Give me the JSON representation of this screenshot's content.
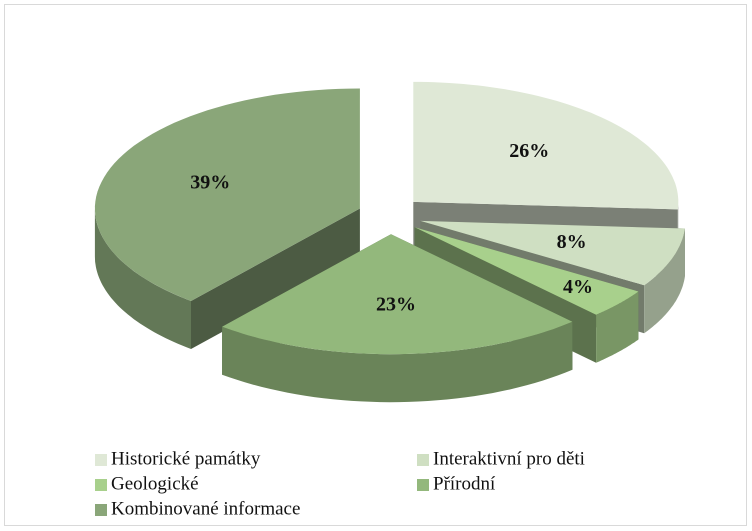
{
  "chart_data": {
    "type": "pie",
    "categories": [
      "Historické památky",
      "Interaktivní pro děti",
      "Geologické",
      "Přírodní",
      "Kombinované informace"
    ],
    "values": [
      26,
      8,
      4,
      23,
      39
    ],
    "value_labels": [
      "26%",
      "8%",
      "4%",
      "23%",
      "39%"
    ],
    "colors": [
      "#dfe8d6",
      "#cfdfc2",
      "#a8d08c",
      "#93b87c",
      "#8aa679"
    ],
    "legend": "bottom"
  }
}
